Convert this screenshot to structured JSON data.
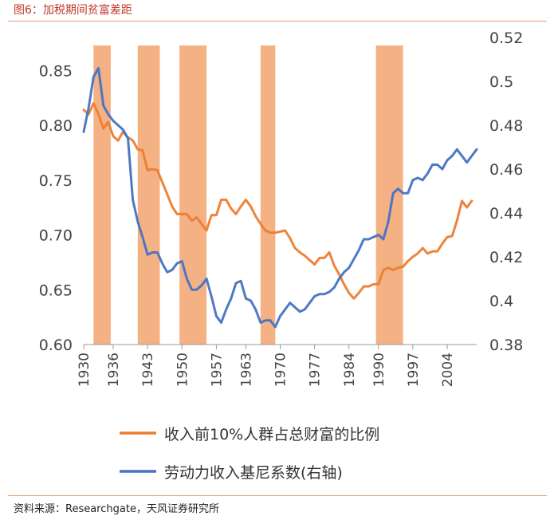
{
  "figure": {
    "title": "图6：加税期间贫富差距",
    "source": "资料来源：Researchgate，天风证券研究所"
  },
  "chart_data": {
    "type": "line",
    "title": "图6：加税期间贫富差距",
    "x_range": [
      1930,
      2010
    ],
    "x_ticks": [
      "1930",
      "1936",
      "1943",
      "1950",
      "1957",
      "1963",
      "1970",
      "1977",
      "1984",
      "1990",
      "1997",
      "2004"
    ],
    "y_left": {
      "range": [
        0.6,
        0.88
      ],
      "ticks": [
        "0.60",
        "0.65",
        "0.70",
        "0.75",
        "0.80",
        "0.85"
      ]
    },
    "y_right": {
      "range": [
        0.38,
        0.52
      ],
      "ticks": [
        "0.38",
        "0.4",
        "0.42",
        "0.44",
        "0.46",
        "0.48",
        "0.5",
        "0.52"
      ]
    },
    "shaded_periods": [
      [
        1932,
        1935.5
      ],
      [
        1941,
        1945.5
      ],
      [
        1949.5,
        1955
      ],
      [
        1966,
        1969
      ],
      [
        1989.5,
        1995
      ]
    ],
    "series": [
      {
        "name": "收入前10%人群占总财富的比例",
        "axis": "left",
        "color": "#ed7d31",
        "points": [
          [
            1930,
            0.814
          ],
          [
            1931,
            0.81
          ],
          [
            1932,
            0.82
          ],
          [
            1933,
            0.81
          ],
          [
            1934,
            0.797
          ],
          [
            1935,
            0.803
          ],
          [
            1936,
            0.79
          ],
          [
            1937,
            0.786
          ],
          [
            1938,
            0.794
          ],
          [
            1939,
            0.789
          ],
          [
            1940,
            0.786
          ],
          [
            1941,
            0.778
          ],
          [
            1942,
            0.777
          ],
          [
            1943,
            0.759
          ],
          [
            1944,
            0.76
          ],
          [
            1945,
            0.759
          ],
          [
            1946,
            0.748
          ],
          [
            1947,
            0.737
          ],
          [
            1948,
            0.726
          ],
          [
            1949,
            0.719
          ],
          [
            1950,
            0.719
          ],
          [
            1951,
            0.719
          ],
          [
            1952,
            0.713
          ],
          [
            1953,
            0.716
          ],
          [
            1954,
            0.71
          ],
          [
            1955,
            0.704
          ],
          [
            1956,
            0.718
          ],
          [
            1957,
            0.718
          ],
          [
            1958,
            0.732
          ],
          [
            1959,
            0.732
          ],
          [
            1960,
            0.724
          ],
          [
            1961,
            0.719
          ],
          [
            1962,
            0.726
          ],
          [
            1963,
            0.732
          ],
          [
            1964,
            0.726
          ],
          [
            1965,
            0.717
          ],
          [
            1966,
            0.71
          ],
          [
            1967,
            0.704
          ],
          [
            1968,
            0.702
          ],
          [
            1969,
            0.702
          ],
          [
            1970,
            0.703
          ],
          [
            1971,
            0.704
          ],
          [
            1972,
            0.697
          ],
          [
            1973,
            0.688
          ],
          [
            1974,
            0.684
          ],
          [
            1975,
            0.681
          ],
          [
            1976,
            0.677
          ],
          [
            1977,
            0.673
          ],
          [
            1978,
            0.679
          ],
          [
            1979,
            0.679
          ],
          [
            1980,
            0.684
          ],
          [
            1981,
            0.672
          ],
          [
            1982,
            0.664
          ],
          [
            1983,
            0.655
          ],
          [
            1984,
            0.647
          ],
          [
            1985,
            0.642
          ],
          [
            1986,
            0.647
          ],
          [
            1987,
            0.653
          ],
          [
            1988,
            0.653
          ],
          [
            1989,
            0.655
          ],
          [
            1990,
            0.655
          ],
          [
            1991,
            0.668
          ],
          [
            1992,
            0.67
          ],
          [
            1993,
            0.668
          ],
          [
            1994,
            0.67
          ],
          [
            1995,
            0.671
          ],
          [
            1996,
            0.676
          ],
          [
            1997,
            0.68
          ],
          [
            1998,
            0.683
          ],
          [
            1999,
            0.688
          ],
          [
            2000,
            0.683
          ],
          [
            2001,
            0.685
          ],
          [
            2002,
            0.685
          ],
          [
            2003,
            0.692
          ],
          [
            2004,
            0.698
          ],
          [
            2005,
            0.699
          ],
          [
            2006,
            0.713
          ],
          [
            2007,
            0.731
          ],
          [
            2008,
            0.725
          ],
          [
            2009,
            0.731
          ]
        ]
      },
      {
        "name": "劳动力收入基尼系数(右轴)",
        "axis": "right",
        "color": "#4472c4",
        "points": [
          [
            1930,
            0.477
          ],
          [
            1931,
            0.488
          ],
          [
            1932,
            0.502
          ],
          [
            1933,
            0.506
          ],
          [
            1934,
            0.489
          ],
          [
            1935,
            0.485
          ],
          [
            1936,
            0.482
          ],
          [
            1937,
            0.48
          ],
          [
            1938,
            0.478
          ],
          [
            1939,
            0.474
          ],
          [
            1940,
            0.446
          ],
          [
            1941,
            0.436
          ],
          [
            1942,
            0.429
          ],
          [
            1943,
            0.421
          ],
          [
            1944,
            0.422
          ],
          [
            1945,
            0.422
          ],
          [
            1946,
            0.417
          ],
          [
            1947,
            0.413
          ],
          [
            1948,
            0.414
          ],
          [
            1949,
            0.417
          ],
          [
            1950,
            0.418
          ],
          [
            1951,
            0.41
          ],
          [
            1952,
            0.405
          ],
          [
            1953,
            0.405
          ],
          [
            1954,
            0.407
          ],
          [
            1955,
            0.41
          ],
          [
            1956,
            0.402
          ],
          [
            1957,
            0.393
          ],
          [
            1958,
            0.39
          ],
          [
            1959,
            0.396
          ],
          [
            1960,
            0.401
          ],
          [
            1961,
            0.408
          ],
          [
            1962,
            0.409
          ],
          [
            1963,
            0.401
          ],
          [
            1964,
            0.4
          ],
          [
            1965,
            0.396
          ],
          [
            1966,
            0.39
          ],
          [
            1967,
            0.391
          ],
          [
            1968,
            0.391
          ],
          [
            1969,
            0.388
          ],
          [
            1970,
            0.393
          ],
          [
            1971,
            0.396
          ],
          [
            1972,
            0.399
          ],
          [
            1973,
            0.397
          ],
          [
            1974,
            0.395
          ],
          [
            1975,
            0.396
          ],
          [
            1976,
            0.399
          ],
          [
            1977,
            0.402
          ],
          [
            1978,
            0.403
          ],
          [
            1979,
            0.403
          ],
          [
            1980,
            0.404
          ],
          [
            1981,
            0.406
          ],
          [
            1982,
            0.41
          ],
          [
            1983,
            0.413
          ],
          [
            1984,
            0.415
          ],
          [
            1985,
            0.419
          ],
          [
            1986,
            0.423
          ],
          [
            1987,
            0.428
          ],
          [
            1988,
            0.428
          ],
          [
            1989,
            0.429
          ],
          [
            1990,
            0.43
          ],
          [
            1991,
            0.428
          ],
          [
            1992,
            0.436
          ],
          [
            1993,
            0.449
          ],
          [
            1994,
            0.451
          ],
          [
            1995,
            0.449
          ],
          [
            1996,
            0.449
          ],
          [
            1997,
            0.455
          ],
          [
            1998,
            0.456
          ],
          [
            1999,
            0.455
          ],
          [
            2000,
            0.458
          ],
          [
            2001,
            0.462
          ],
          [
            2002,
            0.462
          ],
          [
            2003,
            0.46
          ],
          [
            2004,
            0.464
          ],
          [
            2005,
            0.466
          ],
          [
            2006,
            0.469
          ],
          [
            2007,
            0.466
          ],
          [
            2008,
            0.463
          ],
          [
            2009,
            0.466
          ],
          [
            2010,
            0.469
          ]
        ]
      }
    ],
    "shade_color": "#f4b183"
  }
}
